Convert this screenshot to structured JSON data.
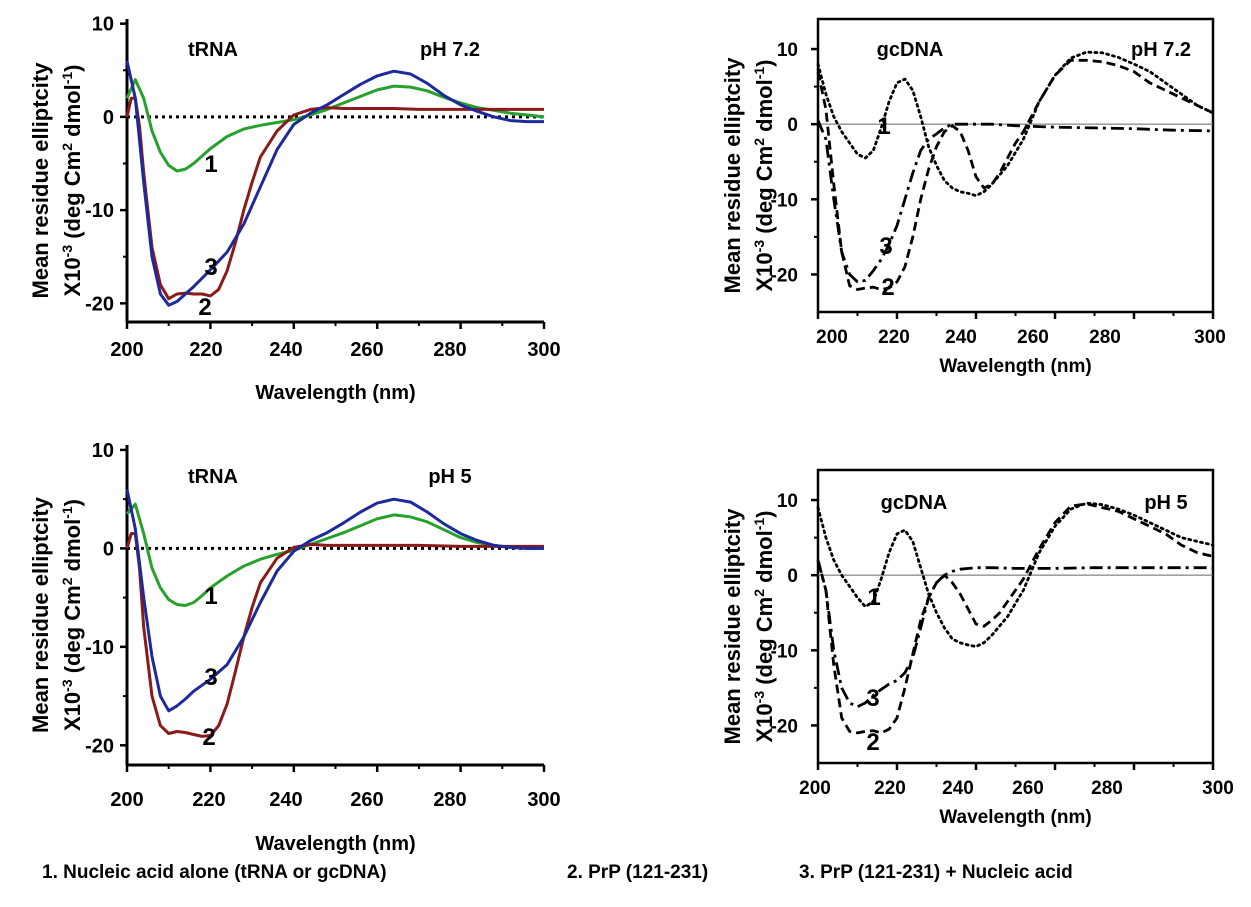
{
  "chart_data": [
    {
      "type": "line",
      "panel_labels": [
        "tRNA",
        "pH 7.2"
      ],
      "ylabel_line1": "Mean residue elliptcity",
      "ylabel_line2_pre": "X10",
      "ylabel_line2_sup1": "-3",
      "ylabel_line2_mid": " (deg Cm",
      "ylabel_line2_sup2": "2",
      "ylabel_line2_post": " dmol",
      "ylabel_line2_sup3": "-1",
      "ylabel_line2_end": ")",
      "xlabel": "Wavelength (nm)",
      "xlim": [
        200,
        300
      ],
      "ylim": [
        -22,
        10.5
      ],
      "xticks": [
        200,
        220,
        240,
        260,
        280,
        300
      ],
      "yticks": [
        10,
        0,
        -10,
        -20
      ],
      "zero_line": "dotted",
      "colors": {
        "1": "#27a12c",
        "2": "#8b1a1a",
        "3": "#1c2a9c"
      },
      "series": [
        {
          "label": "1",
          "style": "solid",
          "color": "#27a12c",
          "x": [
            200,
            202,
            204,
            206,
            208,
            210,
            212,
            214,
            216,
            218,
            220,
            224,
            228,
            232,
            236,
            240,
            244,
            248,
            252,
            256,
            260,
            264,
            268,
            272,
            276,
            280,
            284,
            288,
            292,
            296,
            300
          ],
          "y": [
            2,
            4,
            2,
            -1.5,
            -3.8,
            -5.2,
            -5.8,
            -5.6,
            -5,
            -4.2,
            -3.4,
            -2.1,
            -1.3,
            -0.9,
            -0.6,
            -0.3,
            0.2,
            0.8,
            1.5,
            2.2,
            2.9,
            3.3,
            3.2,
            2.8,
            2.1,
            1.5,
            1,
            0.7,
            0.4,
            0.2,
            0
          ]
        },
        {
          "label": "2",
          "style": "solid",
          "color": "#8b1a1a",
          "x": [
            200,
            201,
            202,
            203,
            204,
            206,
            208,
            210,
            212,
            214,
            216,
            218,
            220,
            222,
            224,
            226,
            228,
            230,
            232,
            236,
            240,
            244,
            248,
            252,
            256,
            260,
            264,
            270,
            280,
            290,
            300
          ],
          "y": [
            0,
            2,
            2,
            -1,
            -6,
            -14,
            -18,
            -19.5,
            -19,
            -18.9,
            -19,
            -19,
            -19.2,
            -18.5,
            -16.5,
            -13.5,
            -10,
            -7,
            -4.3,
            -1.5,
            0.2,
            0.8,
            1,
            0.9,
            0.9,
            0.9,
            0.9,
            0.8,
            0.8,
            0.8,
            0.8
          ]
        },
        {
          "label": "3",
          "style": "solid",
          "color": "#1c2a9c",
          "x": [
            200,
            202,
            204,
            206,
            208,
            210,
            212,
            214,
            216,
            218,
            220,
            224,
            228,
            232,
            236,
            240,
            244,
            248,
            252,
            256,
            260,
            264,
            268,
            272,
            276,
            280,
            284,
            288,
            292,
            296,
            300
          ],
          "y": [
            6,
            2,
            -7,
            -15,
            -19,
            -20.2,
            -19.8,
            -19,
            -18.2,
            -17.3,
            -16.4,
            -14.5,
            -11.5,
            -7.5,
            -3.5,
            -0.8,
            0.4,
            1.3,
            2.4,
            3.5,
            4.4,
            4.9,
            4.6,
            3.6,
            2.3,
            1.3,
            0.6,
            0,
            -0.4,
            -0.5,
            -0.5
          ]
        }
      ]
    },
    {
      "type": "line",
      "panel_labels": [
        "gcDNA",
        "pH 7.2"
      ],
      "ylabel_line1": "Mean residue elliptcity",
      "ylabel_line2_pre": "X10",
      "ylabel_line2_sup1": "-3",
      "ylabel_line2_mid": " (deg Cm",
      "ylabel_line2_sup2": "2",
      "ylabel_line2_post": " dmol",
      "ylabel_line2_sup3": "-1",
      "ylabel_line2_end": ")",
      "xlabel": "Wavelength (nm)",
      "xlim": [
        200,
        300
      ],
      "ylim": [
        -25,
        14
      ],
      "xticks": [
        200,
        220,
        240,
        260,
        280,
        300
      ],
      "yticks": [
        10,
        0,
        -10,
        -20
      ],
      "zero_line": "thin",
      "series": [
        {
          "label": "1",
          "style": "dotted",
          "color": "#000000",
          "x": [
            200,
            202,
            204,
            206,
            208,
            210,
            212,
            214,
            216,
            218,
            220,
            222,
            224,
            226,
            228,
            230,
            232,
            234,
            236,
            238,
            240,
            242,
            244,
            248,
            252,
            256,
            260,
            264,
            268,
            272,
            276,
            280,
            284,
            288,
            292,
            296,
            300
          ],
          "y": [
            8,
            4,
            1,
            -1,
            -2.5,
            -4,
            -4.5,
            -3.5,
            -0.5,
            3,
            5.5,
            6,
            4.5,
            1,
            -3,
            -5.5,
            -7.5,
            -8.5,
            -9,
            -9.2,
            -9.5,
            -9,
            -8,
            -5.5,
            -2,
            3,
            6.5,
            8.8,
            9.6,
            9.5,
            8.9,
            8,
            7,
            5.5,
            4,
            2.5,
            1.5
          ]
        },
        {
          "label": "2",
          "style": "dashed",
          "color": "#000000",
          "x": [
            200,
            202,
            204,
            206,
            208,
            210,
            212,
            214,
            216,
            218,
            220,
            222,
            224,
            226,
            228,
            230,
            232,
            234,
            236,
            238,
            240,
            242,
            244,
            246,
            248,
            250,
            252,
            256,
            260,
            264,
            268,
            272,
            276,
            280,
            284,
            288,
            292,
            296,
            300
          ],
          "y": [
            7,
            2,
            -8,
            -17,
            -21.5,
            -22,
            -21.8,
            -21.7,
            -22,
            -21.8,
            -21,
            -19,
            -15,
            -10,
            -6,
            -3,
            -1,
            -0.2,
            -1,
            -3.5,
            -7,
            -8.5,
            -8,
            -6.5,
            -4.5,
            -2.5,
            -1,
            3,
            6.5,
            8.5,
            8.5,
            8.3,
            7.8,
            7,
            5.5,
            4.5,
            3.5,
            2.5,
            1.5
          ]
        },
        {
          "label": "3",
          "style": "dashdot",
          "color": "#000000",
          "x": [
            200,
            202,
            204,
            206,
            208,
            210,
            212,
            214,
            216,
            218,
            220,
            222,
            224,
            226,
            228,
            230,
            232,
            234,
            236,
            240,
            244,
            250,
            260,
            270,
            280,
            290,
            300
          ],
          "y": [
            0.5,
            -2,
            -10,
            -17,
            -20,
            -21,
            -20.8,
            -19.5,
            -18,
            -16,
            -13.5,
            -10,
            -6.5,
            -3.5,
            -2,
            -1.3,
            -0.5,
            0,
            0,
            0,
            0,
            -0.2,
            -0.4,
            -0.5,
            -0.6,
            -0.8,
            -0.9
          ]
        }
      ]
    },
    {
      "type": "line",
      "panel_labels": [
        "tRNA",
        "pH 5"
      ],
      "ylabel_line1": "Mean residue elliptcity",
      "ylabel_line2_pre": "X10",
      "ylabel_line2_sup1": "-3",
      "ylabel_line2_mid": " (deg Cm",
      "ylabel_line2_sup2": "2",
      "ylabel_line2_post": " dmol",
      "ylabel_line2_sup3": "-1",
      "ylabel_line2_end": ")",
      "xlabel": "Wavelength (nm)",
      "xlim": [
        200,
        300
      ],
      "ylim": [
        -22,
        10.5
      ],
      "xticks": [
        200,
        220,
        240,
        260,
        280,
        300
      ],
      "yticks": [
        10,
        0,
        -10,
        -20
      ],
      "zero_line": "dotted",
      "series": [
        {
          "label": "1",
          "style": "solid",
          "color": "#27a12c",
          "x": [
            200,
            202,
            204,
            206,
            208,
            210,
            212,
            214,
            216,
            218,
            220,
            224,
            228,
            232,
            236,
            240,
            244,
            248,
            252,
            256,
            260,
            264,
            268,
            272,
            276,
            280,
            284,
            288,
            292,
            296,
            300
          ],
          "y": [
            3.5,
            4.5,
            1.5,
            -2,
            -4,
            -5.2,
            -5.7,
            -5.8,
            -5.5,
            -4.8,
            -4,
            -2.8,
            -1.8,
            -1.1,
            -0.6,
            -0.2,
            0.4,
            1,
            1.6,
            2.3,
            3,
            3.4,
            3.2,
            2.7,
            1.9,
            1.1,
            0.6,
            0.3,
            0.1,
            0,
            0
          ]
        },
        {
          "label": "2",
          "style": "solid",
          "color": "#8b1a1a",
          "x": [
            200,
            201,
            202,
            203,
            204,
            206,
            208,
            210,
            212,
            214,
            216,
            218,
            220,
            222,
            224,
            226,
            228,
            230,
            232,
            236,
            240,
            244,
            248,
            252,
            256,
            260,
            270,
            280,
            290,
            300
          ],
          "y": [
            0,
            1.5,
            1.5,
            -2,
            -8,
            -15,
            -18,
            -18.8,
            -18.6,
            -18.7,
            -18.9,
            -19.1,
            -19,
            -18,
            -15.8,
            -12.5,
            -9,
            -6,
            -3.5,
            -1,
            0.1,
            0.4,
            0.3,
            0.3,
            0.3,
            0.3,
            0.3,
            0.2,
            0.2,
            0.2
          ]
        },
        {
          "label": "3",
          "style": "solid",
          "color": "#1c2a9c",
          "x": [
            200,
            202,
            204,
            206,
            208,
            210,
            212,
            214,
            216,
            218,
            220,
            224,
            228,
            232,
            236,
            240,
            244,
            248,
            252,
            256,
            260,
            264,
            268,
            272,
            276,
            280,
            284,
            288,
            292,
            296,
            300
          ],
          "y": [
            6,
            2,
            -5,
            -11,
            -15,
            -16.5,
            -16,
            -15.3,
            -14.5,
            -13.9,
            -13.3,
            -11.8,
            -9,
            -5.5,
            -2.3,
            -0.3,
            0.8,
            1.6,
            2.6,
            3.7,
            4.6,
            5,
            4.7,
            3.7,
            2.5,
            1.5,
            0.8,
            0.3,
            0.1,
            0,
            0
          ]
        }
      ]
    },
    {
      "type": "line",
      "panel_labels": [
        "gcDNA",
        "pH 5"
      ],
      "ylabel_line1": "Mean residue elliptcity",
      "ylabel_line2_pre": "X10",
      "ylabel_line2_sup1": "-3",
      "ylabel_line2_mid": " (deg Cm",
      "ylabel_line2_sup2": "2",
      "ylabel_line2_post": " dmol",
      "ylabel_line2_sup3": "-1",
      "ylabel_line2_end": ")",
      "xlabel": "Wavelength (nm)",
      "xlim": [
        200,
        300
      ],
      "ylim": [
        -25,
        14
      ],
      "xticks": [
        200,
        220,
        240,
        260,
        280,
        300
      ],
      "yticks": [
        10,
        0,
        -10,
        -20
      ],
      "zero_line": "thin",
      "series": [
        {
          "label": "1",
          "style": "dotted",
          "color": "#000000",
          "x": [
            200,
            202,
            204,
            206,
            208,
            210,
            212,
            214,
            216,
            218,
            220,
            222,
            224,
            226,
            228,
            230,
            232,
            234,
            236,
            238,
            240,
            242,
            244,
            248,
            252,
            256,
            260,
            264,
            268,
            272,
            276,
            280,
            284,
            288,
            292,
            296,
            300
          ],
          "y": [
            9,
            5,
            2,
            0,
            -1.5,
            -3,
            -4.2,
            -3.5,
            -0.5,
            3,
            5.5,
            6,
            4.5,
            1,
            -2.5,
            -5,
            -7,
            -8.5,
            -9,
            -9.3,
            -9.5,
            -9,
            -8,
            -5.5,
            -2,
            3,
            6.5,
            8.8,
            9.6,
            9.4,
            8.8,
            8,
            7,
            6,
            5,
            4.5,
            4
          ]
        },
        {
          "label": "2",
          "style": "dashed",
          "color": "#000000",
          "x": [
            200,
            202,
            204,
            206,
            208,
            210,
            212,
            214,
            216,
            218,
            220,
            222,
            224,
            226,
            228,
            230,
            232,
            234,
            236,
            238,
            240,
            242,
            244,
            246,
            248,
            250,
            252,
            256,
            260,
            264,
            268,
            272,
            276,
            280,
            284,
            288,
            292,
            296,
            300
          ],
          "y": [
            2,
            -2,
            -12,
            -19,
            -20.8,
            -21,
            -20.8,
            -20.7,
            -21,
            -20.5,
            -19,
            -15,
            -10.5,
            -6,
            -3,
            -1,
            0,
            -1,
            -2.5,
            -4.5,
            -6.5,
            -6.8,
            -6,
            -5,
            -3.5,
            -2,
            -0.5,
            3.5,
            7,
            9.2,
            9.5,
            9,
            8.5,
            7.5,
            6.5,
            5.5,
            4,
            3,
            2.5
          ]
        },
        {
          "label": "3",
          "style": "dashdot",
          "color": "#000000",
          "x": [
            200,
            202,
            204,
            206,
            208,
            210,
            212,
            214,
            216,
            218,
            220,
            222,
            224,
            226,
            228,
            230,
            232,
            234,
            236,
            240,
            244,
            250,
            260,
            270,
            280,
            290,
            300
          ],
          "y": [
            2,
            -2,
            -10,
            -15,
            -17,
            -17.5,
            -17,
            -16,
            -15.2,
            -14.5,
            -14,
            -13,
            -11,
            -7,
            -3,
            -1,
            0,
            0.5,
            0.8,
            1,
            1,
            0.9,
            0.9,
            1,
            1,
            1,
            1
          ]
        }
      ]
    }
  ],
  "legend": [
    "1. Nucleic acid alone (tRNA or gcDNA)",
    "2. PrP (121-231)",
    "3. PrP (121-231) + Nucleic acid"
  ]
}
